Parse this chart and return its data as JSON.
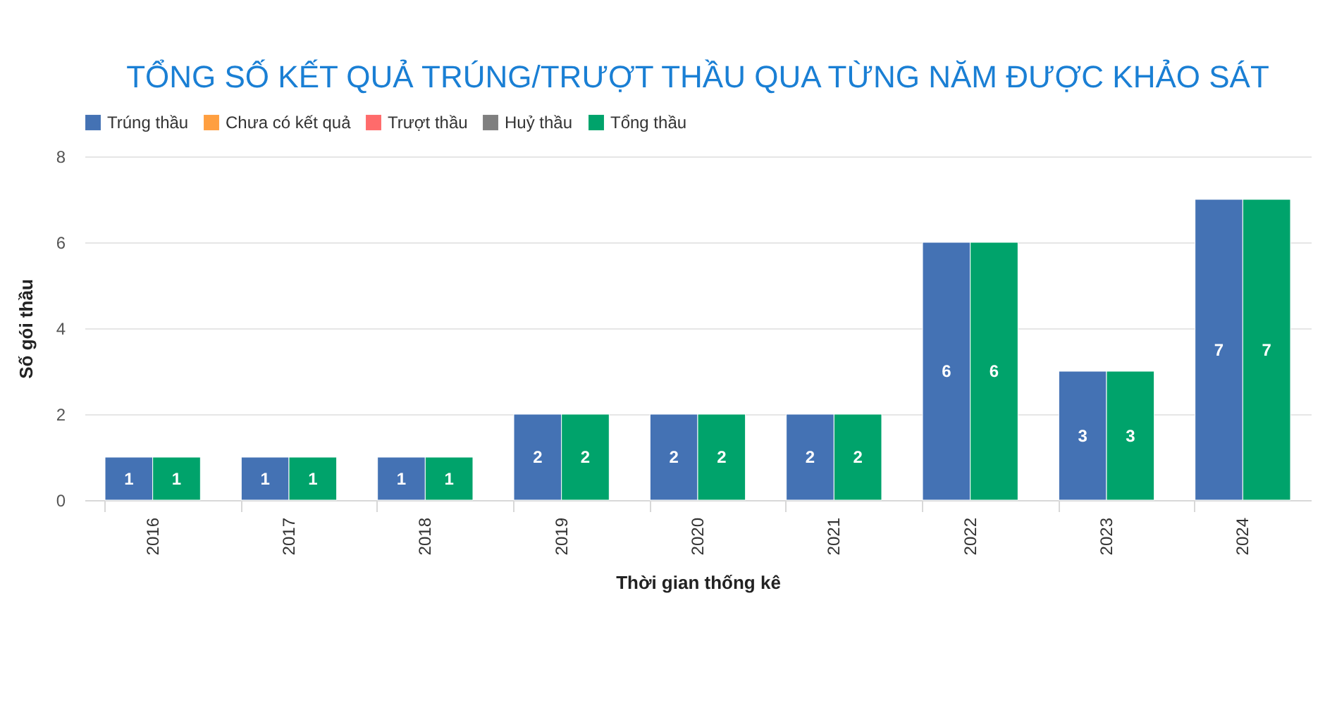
{
  "chart_data": {
    "type": "bar",
    "title": "TỔNG SỐ KẾT QUẢ TRÚNG/TRƯỢT THẦU QUA TỪNG NĂM ĐƯỢC KHẢO SÁT",
    "xlabel": "Thời gian thống kê",
    "ylabel": "Số gói thầu",
    "categories": [
      "2016",
      "2017",
      "2018",
      "2019",
      "2020",
      "2021",
      "2022",
      "2023",
      "2024"
    ],
    "series": [
      {
        "name": "Trúng thầu",
        "color": "#4472b4",
        "values": [
          1,
          1,
          1,
          2,
          2,
          2,
          6,
          3,
          7
        ]
      },
      {
        "name": "Chưa có kết quả",
        "color": "#ff9f40",
        "values": [
          null,
          null,
          null,
          null,
          null,
          null,
          null,
          null,
          null
        ]
      },
      {
        "name": "Trượt thầu",
        "color": "#ff6b6b",
        "values": [
          null,
          null,
          null,
          null,
          null,
          null,
          null,
          null,
          null
        ]
      },
      {
        "name": "Huỷ thầu",
        "color": "#7f7f7f",
        "values": [
          null,
          null,
          null,
          null,
          null,
          null,
          null,
          null,
          null
        ]
      },
      {
        "name": "Tổng thầu",
        "color": "#00a36b",
        "values": [
          1,
          1,
          1,
          2,
          2,
          2,
          6,
          3,
          7
        ]
      }
    ],
    "ylim": [
      0,
      8
    ],
    "yticks": [
      0,
      2,
      4,
      6,
      8
    ],
    "grid": "y",
    "legend": "top",
    "data_labels": true
  }
}
